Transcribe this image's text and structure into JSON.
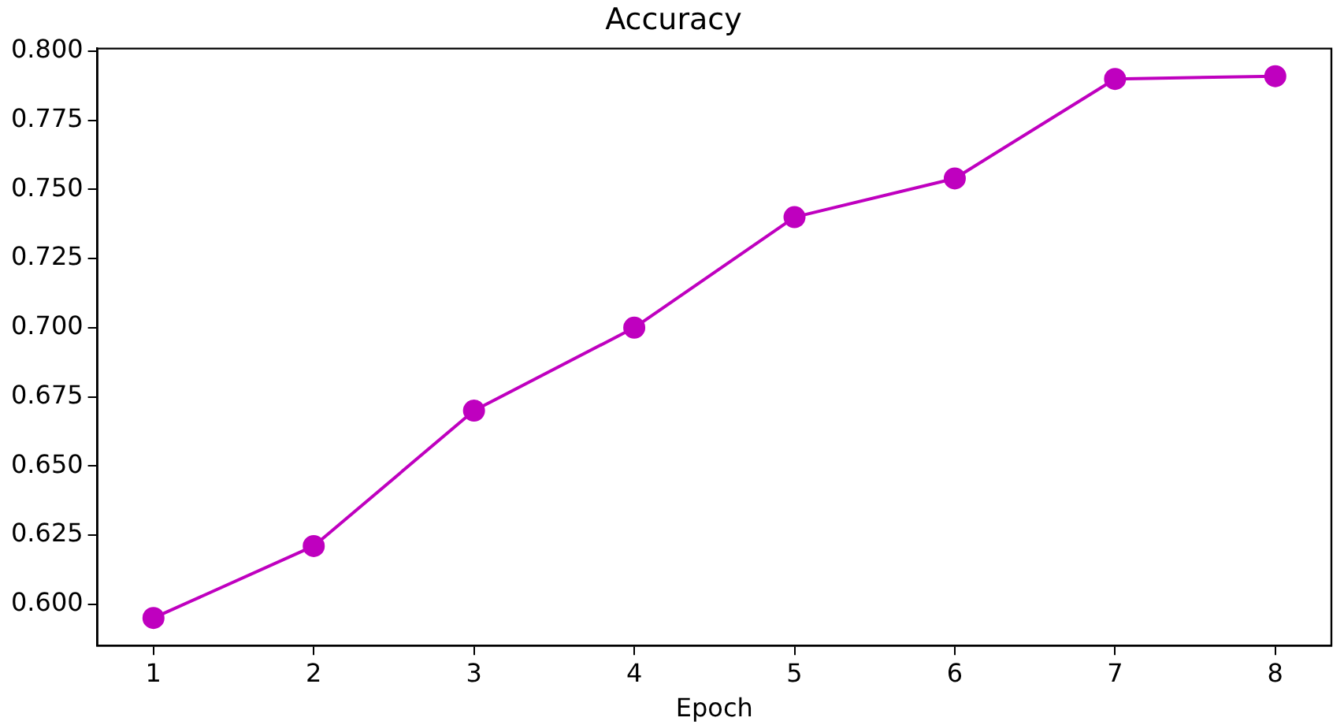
{
  "chart_data": {
    "type": "line",
    "title": "Accuracy",
    "xlabel": "Epoch",
    "x": [
      1,
      2,
      3,
      4,
      5,
      6,
      7,
      8
    ],
    "series": [
      {
        "color": "#bf00bf",
        "values": [
          0.595,
          0.621,
          0.67,
          0.7,
          0.74,
          0.754,
          0.79,
          0.791
        ]
      }
    ],
    "xlim": [
      0.65,
      8.35
    ],
    "xticks": [
      1,
      2,
      3,
      4,
      5,
      6,
      7,
      8
    ],
    "ylim": [
      0.585,
      0.801
    ],
    "yticks": [
      {
        "value": 0.6,
        "label": "0.600"
      },
      {
        "value": 0.625,
        "label": "0.625"
      },
      {
        "value": 0.65,
        "label": "0.650"
      },
      {
        "value": 0.675,
        "label": "0.675"
      },
      {
        "value": 0.7,
        "label": "0.700"
      },
      {
        "value": 0.725,
        "label": "0.725"
      },
      {
        "value": 0.75,
        "label": "0.750"
      },
      {
        "value": 0.775,
        "label": "0.775"
      },
      {
        "value": 0.8,
        "label": "0.800"
      }
    ],
    "grid": false,
    "legend": false,
    "marker": "circle",
    "line_style": "solid"
  }
}
